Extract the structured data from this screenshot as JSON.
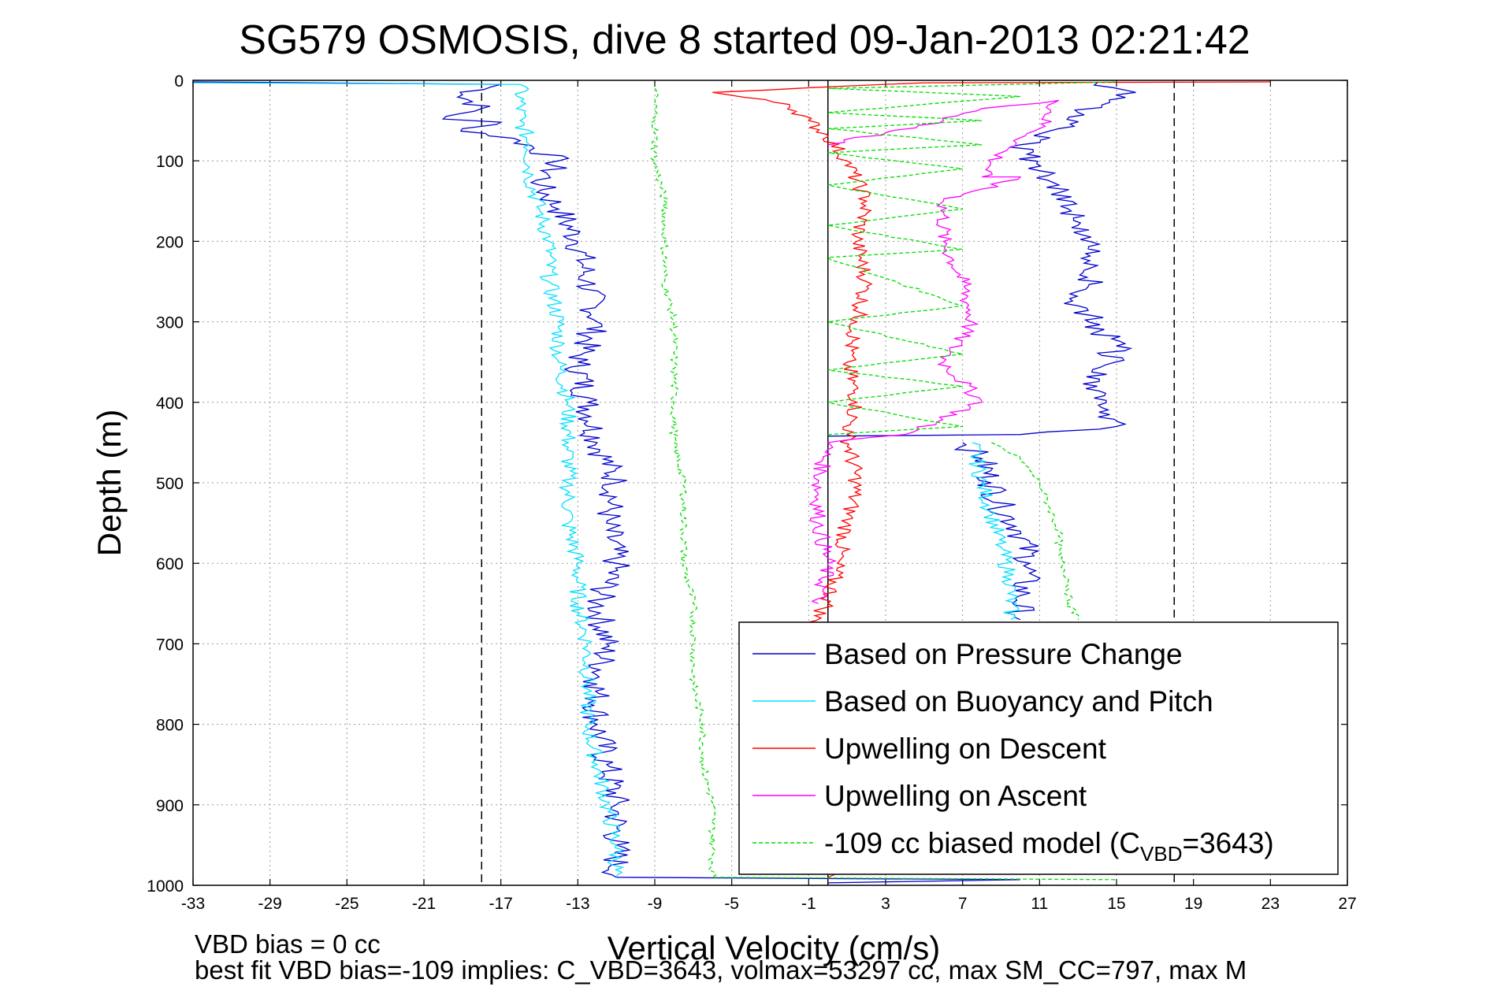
{
  "chart_data": {
    "type": "line",
    "title": "SG579 OSMOSIS, dive 8 started 09-Jan-2013 02:21:42",
    "xlabel": "Vertical Velocity (cm/s)",
    "ylabel": "Depth (m)",
    "xlim": [
      -33,
      27
    ],
    "ylim": [
      1000,
      0
    ],
    "xticks": [
      "-33",
      "-29",
      "-25",
      "-21",
      "-17",
      "-13",
      "-9",
      "-5",
      "-1",
      "3",
      "7",
      "11",
      "15",
      "19",
      "23",
      "27"
    ],
    "yticks": [
      "0",
      "100",
      "200",
      "300",
      "400",
      "500",
      "600",
      "700",
      "800",
      "900",
      "1000"
    ],
    "grid": true,
    "legend_position": "bottom-right",
    "reference_lines": {
      "solid_x": 0,
      "dashed_x": [
        -18,
        18
      ]
    },
    "series": [
      {
        "name": "Based on Pressure Change",
        "color": "#0000cc",
        "style": "solid",
        "points": [
          [
            -33,
            2
          ],
          [
            -17,
            5
          ],
          [
            -19,
            18
          ],
          [
            -18,
            35
          ],
          [
            -20,
            48
          ],
          [
            -17,
            52
          ],
          [
            -19,
            60
          ],
          [
            -16,
            75
          ],
          [
            -14,
            100
          ],
          [
            -15,
            130
          ],
          [
            -14,
            160
          ],
          [
            -13,
            200
          ],
          [
            -12.5,
            250
          ],
          [
            -12,
            300
          ],
          [
            -13,
            350
          ],
          [
            -12.5,
            400
          ],
          [
            -12,
            450
          ],
          [
            -11,
            500
          ],
          [
            -11.5,
            550
          ],
          [
            -11,
            600
          ],
          [
            -12,
            650
          ],
          [
            -11.5,
            700
          ],
          [
            -12,
            750
          ],
          [
            -12,
            800
          ],
          [
            -11.5,
            850
          ],
          [
            -11,
            900
          ],
          [
            -11,
            950
          ],
          [
            -11,
            990
          ],
          [
            10,
            993
          ],
          [
            0,
            997
          ]
        ],
        "ascent_points": [
          [
            0,
            442
          ],
          [
            10,
            440
          ],
          [
            15,
            430
          ],
          [
            14,
            380
          ],
          [
            15,
            330
          ],
          [
            13,
            280
          ],
          [
            14,
            230
          ],
          [
            13,
            180
          ],
          [
            12,
            130
          ],
          [
            10,
            80
          ],
          [
            12,
            60
          ],
          [
            13,
            40
          ],
          [
            16,
            15
          ],
          [
            14,
            3
          ]
        ],
        "deep_points": [
          [
            7,
            450
          ],
          [
            8,
            470
          ],
          [
            8.5,
            500
          ],
          [
            9,
            530
          ],
          [
            10,
            560
          ],
          [
            10.5,
            600
          ],
          [
            10,
            640
          ],
          [
            10,
            670
          ]
        ]
      },
      {
        "name": "Based on Buoyancy and Pitch",
        "color": "#00e0ff",
        "style": "solid",
        "points": [
          [
            -33,
            3
          ],
          [
            -16,
            5
          ],
          [
            -16,
            50
          ],
          [
            -15.5,
            80
          ],
          [
            -15.5,
            120
          ],
          [
            -15,
            160
          ],
          [
            -14.5,
            200
          ],
          [
            -14.5,
            250
          ],
          [
            -14,
            300
          ],
          [
            -14,
            350
          ],
          [
            -13.5,
            400
          ],
          [
            -13.5,
            450
          ],
          [
            -13.5,
            500
          ],
          [
            -13.5,
            550
          ],
          [
            -13,
            600
          ],
          [
            -13,
            650
          ],
          [
            -12.5,
            700
          ],
          [
            -12.5,
            750
          ],
          [
            -12.5,
            800
          ],
          [
            -12,
            850
          ],
          [
            -11.5,
            900
          ],
          [
            -11,
            950
          ],
          [
            -11,
            990
          ]
        ],
        "deep_points": [
          [
            7.5,
            450
          ],
          [
            8,
            500
          ],
          [
            8.5,
            540
          ],
          [
            9,
            580
          ],
          [
            9.5,
            620
          ],
          [
            9.5,
            670
          ]
        ]
      },
      {
        "name": "Upwelling on Descent",
        "color": "#ff0000",
        "style": "solid",
        "points": [
          [
            23,
            2
          ],
          [
            5,
            3
          ],
          [
            -6,
            15
          ],
          [
            -2,
            30
          ],
          [
            -1,
            50
          ],
          [
            0,
            70
          ],
          [
            1,
            100
          ],
          [
            2,
            150
          ],
          [
            1.5,
            200
          ],
          [
            2,
            250
          ],
          [
            1.5,
            300
          ],
          [
            1,
            350
          ],
          [
            1.5,
            400
          ],
          [
            1,
            440
          ],
          [
            1.5,
            500
          ],
          [
            1,
            550
          ],
          [
            0.5,
            600
          ],
          [
            0,
            650
          ],
          [
            -1,
            680
          ],
          [
            0,
            990
          ]
        ]
      },
      {
        "name": "Upwelling on Ascent",
        "color": "#ff00ff",
        "style": "solid",
        "points": [
          [
            0,
            80
          ],
          [
            3,
            65
          ],
          [
            6,
            50
          ],
          [
            8,
            35
          ],
          [
            12,
            25
          ],
          [
            11,
            60
          ],
          [
            9,
            90
          ],
          [
            8,
            120
          ],
          [
            10,
            120
          ],
          [
            6,
            150
          ],
          [
            6,
            200
          ],
          [
            7,
            250
          ],
          [
            7.5,
            300
          ],
          [
            6,
            350
          ],
          [
            8,
            400
          ],
          [
            4,
            440
          ],
          [
            0,
            450
          ],
          [
            -0.5,
            500
          ],
          [
            -0.5,
            550
          ],
          [
            0,
            600
          ],
          [
            -0.5,
            650
          ]
        ]
      },
      {
        "name": "-109 cc biased model (C",
        "subscript": "VBD",
        "name_suffix": "=3643)",
        "color": "#00dd00",
        "style": "dashed",
        "points": [
          [
            -9,
            10
          ],
          [
            -9,
            50
          ],
          [
            -9,
            100
          ],
          [
            -8.5,
            150
          ],
          [
            -8.5,
            200
          ],
          [
            -8.5,
            250
          ],
          [
            -8,
            300
          ],
          [
            -8,
            350
          ],
          [
            -8,
            400
          ],
          [
            -8,
            450
          ],
          [
            -7.5,
            500
          ],
          [
            -7.5,
            550
          ],
          [
            -7.5,
            600
          ],
          [
            -7,
            650
          ],
          [
            -7,
            700
          ],
          [
            -7,
            750
          ],
          [
            -6.5,
            800
          ],
          [
            -6.5,
            850
          ],
          [
            -6,
            900
          ],
          [
            -6,
            950
          ],
          [
            -6,
            990
          ],
          [
            15,
            993
          ]
        ],
        "ascent_points": [
          [
            0,
            440
          ],
          [
            7,
            430
          ],
          [
            0,
            400
          ],
          [
            7,
            380
          ],
          [
            0,
            360
          ],
          [
            7,
            340
          ],
          [
            0,
            300
          ],
          [
            7,
            280
          ],
          [
            0,
            220
          ],
          [
            7,
            210
          ],
          [
            0,
            180
          ],
          [
            7,
            160
          ],
          [
            0,
            130
          ],
          [
            7,
            110
          ],
          [
            0,
            90
          ],
          [
            8,
            80
          ],
          [
            0,
            60
          ],
          [
            8,
            50
          ],
          [
            0,
            40
          ],
          [
            10,
            20
          ],
          [
            0,
            10
          ],
          [
            15,
            2
          ]
        ],
        "deep_points": [
          [
            8.5,
            450
          ],
          [
            10,
            470
          ],
          [
            11,
            500
          ],
          [
            11.5,
            530
          ],
          [
            12,
            560
          ],
          [
            12,
            590
          ],
          [
            12.5,
            620
          ],
          [
            12.5,
            650
          ],
          [
            13,
            670
          ]
        ]
      }
    ],
    "footer": {
      "line1": "VBD bias = 0 cc",
      "line2": "best fit VBD bias=-109 implies: C_VBD=3643, volmax=53297 cc, max SM_CC=797, max M"
    }
  }
}
